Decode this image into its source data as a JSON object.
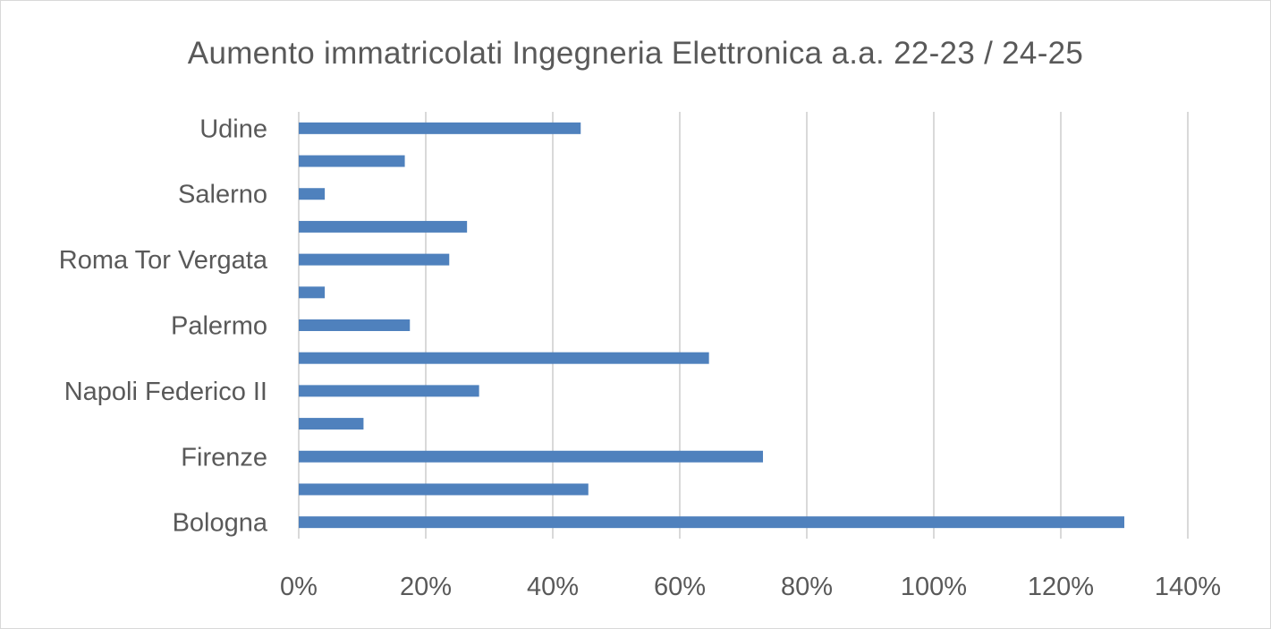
{
  "chart_data": {
    "type": "bar",
    "orientation": "horizontal",
    "title": "Aumento immatricolati Ingegneria Elettronica a.a. 22-23 / 24-25",
    "xlabel": "",
    "ylabel": "",
    "categories": [
      "Bologna",
      "",
      "Firenze",
      "",
      "Napoli Federico II",
      "",
      "Palermo",
      "",
      "Roma Tor Vergata",
      "",
      "Salerno",
      "",
      "Udine"
    ],
    "values": [
      1.3,
      0.456,
      0.731,
      0.102,
      0.284,
      0.646,
      0.175,
      0.041,
      0.237,
      0.265,
      0.041,
      0.167,
      0.444
    ],
    "xlim": [
      0,
      1.4
    ],
    "x_ticks": [
      0,
      0.2,
      0.4,
      0.6,
      0.8,
      1.0,
      1.2,
      1.4
    ],
    "x_tick_labels": [
      "0%",
      "20%",
      "40%",
      "60%",
      "80%",
      "100%",
      "120%",
      "140%"
    ],
    "grid": "vertical",
    "legend": "none",
    "bar_color": "#4f81bd",
    "grid_color": "#d9d9d9"
  }
}
